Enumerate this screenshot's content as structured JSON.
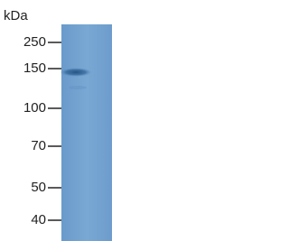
{
  "unit_label": "kDa",
  "markers": [
    "250",
    "150",
    "100",
    "70",
    "50",
    "40"
  ]
}
